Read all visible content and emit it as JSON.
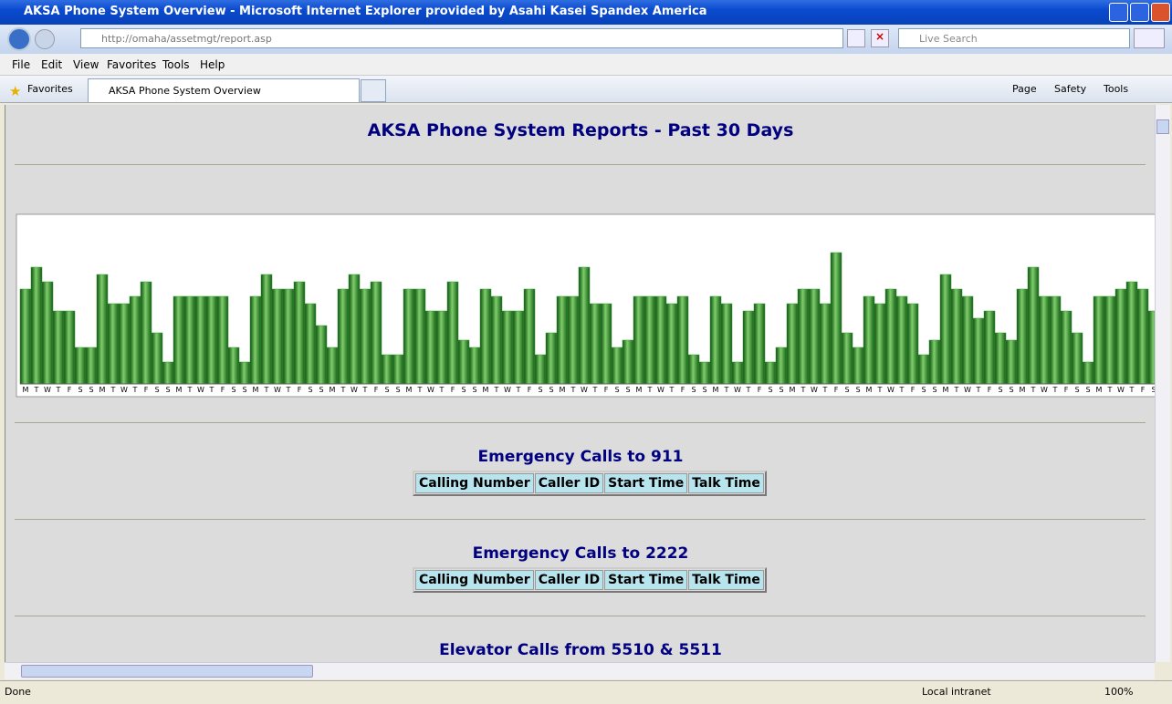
{
  "window": {
    "title": "AKSA Phone System Overview - Microsoft Internet Explorer provided by Asahi Kasei Spandex America"
  },
  "address": "http://omaha/assetmgt/report.asp",
  "search": "Live Search",
  "menu": [
    "File",
    "Edit",
    "View",
    "Favorites",
    "Tools",
    "Help"
  ],
  "favorites": "Favorites",
  "tab": "AKSA Phone System Overview",
  "commands": [
    "Page",
    "Safety",
    "Tools"
  ],
  "page": {
    "title": "AKSA Phone System Reports - Past 30 Days",
    "sections": [
      {
        "heading": "Emergency Calls to 911",
        "columns": [
          "Calling Number",
          "Caller ID",
          "Start Time",
          "Talk Time"
        ]
      },
      {
        "heading": "Emergency Calls to 2222",
        "columns": [
          "Calling Number",
          "Caller ID",
          "Start Time",
          "Talk Time"
        ]
      },
      {
        "heading": "Elevator Calls from 5510 & 5511"
      }
    ]
  },
  "chart_data": {
    "type": "bar",
    "color": "#2f9a2f",
    "ylim": [
      0,
      186
    ],
    "categories": [
      "M",
      "T",
      "W",
      "T",
      "F",
      "S",
      "S",
      "M",
      "T",
      "W",
      "T",
      "F",
      "S",
      "S",
      "M",
      "T",
      "W",
      "T",
      "F",
      "S",
      "S",
      "M",
      "T",
      "W",
      "T",
      "F",
      "S",
      "S",
      "M",
      "T",
      "W",
      "T",
      "F",
      "S",
      "S",
      "M",
      "T",
      "W",
      "T",
      "F",
      "S",
      "S",
      "M",
      "T",
      "W",
      "T",
      "F",
      "S",
      "S",
      "M",
      "T",
      "W",
      "T",
      "F",
      "S",
      "S",
      "M",
      "T",
      "W",
      "T",
      "F",
      "S",
      "S",
      "M",
      "T",
      "W",
      "T",
      "F",
      "S",
      "S",
      "M",
      "T",
      "W",
      "T",
      "F",
      "S",
      "S",
      "M",
      "T",
      "W",
      "T",
      "F",
      "S",
      "S",
      "M",
      "T",
      "W",
      "T",
      "F",
      "S",
      "S",
      "M",
      "T",
      "W",
      "T",
      "F",
      "S",
      "S",
      "M",
      "T",
      "W",
      "T",
      "F",
      "S"
    ],
    "values": [
      104,
      128,
      112,
      80,
      80,
      40,
      40,
      120,
      88,
      88,
      96,
      112,
      56,
      24,
      96,
      96,
      96,
      96,
      96,
      40,
      24,
      96,
      120,
      104,
      104,
      112,
      88,
      64,
      40,
      104,
      120,
      104,
      112,
      32,
      32,
      104,
      104,
      80,
      80,
      112,
      48,
      40,
      104,
      96,
      80,
      80,
      104,
      32,
      56,
      96,
      96,
      128,
      88,
      88,
      40,
      48,
      96,
      96,
      96,
      88,
      96,
      32,
      24,
      96,
      88,
      24,
      80,
      88,
      24,
      40,
      88,
      104,
      104,
      88,
      144,
      56,
      40,
      96,
      88,
      104,
      96,
      88,
      32,
      48,
      120,
      104,
      96,
      72,
      80,
      56,
      48,
      104,
      128,
      96,
      96,
      80,
      56,
      24,
      96,
      96,
      104,
      112,
      104,
      80
    ]
  },
  "status": {
    "text": "Done",
    "zone": "Local intranet",
    "zoom": "100%"
  }
}
